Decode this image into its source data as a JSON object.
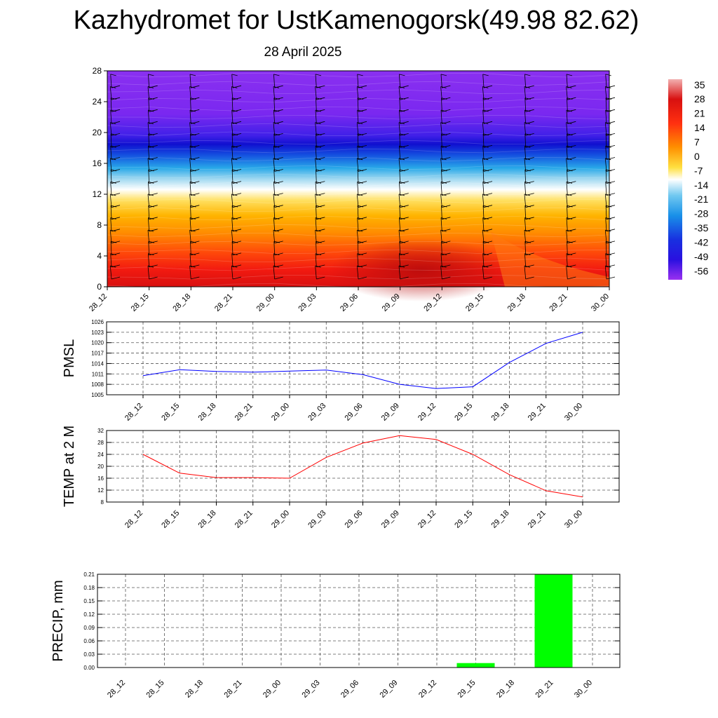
{
  "title": "Kazhydromet for UstKamenogorsk(49.98 82.62)",
  "subtitle": "28 April 2025",
  "time_labels": [
    "28_12",
    "28_15",
    "28_18",
    "28_21",
    "29_00",
    "29_03",
    "29_06",
    "29_09",
    "29_12",
    "29_15",
    "29_18",
    "29_21",
    "30_00"
  ],
  "colors": {
    "pmsl_line": "#0000ff",
    "temp_line": "#ff0000",
    "precip_bar": "#00ff00",
    "grid": "#555555"
  },
  "chart_data": [
    {
      "type": "heatmap",
      "description_of_field": "temperature cross-section with wind barbs",
      "x": [
        "28_12",
        "28_15",
        "28_18",
        "28_21",
        "29_00",
        "29_03",
        "29_06",
        "29_09",
        "29_12",
        "29_15",
        "29_18",
        "29_21",
        "30_00"
      ],
      "y_ticks": [
        0,
        4,
        8,
        12,
        16,
        20,
        24,
        28
      ],
      "ylim": [
        0,
        28
      ],
      "colorbar_labels": [
        "35",
        "28",
        "21",
        "14",
        "7",
        "0",
        "-7",
        "-14",
        "-21",
        "-28",
        "-35",
        "-42",
        "-49",
        "-56"
      ],
      "colorbar_range": [
        -60,
        38
      ],
      "wind_barbs": true
    },
    {
      "type": "line",
      "ylabel": "PMSL",
      "x": [
        "28_12",
        "28_15",
        "28_18",
        "28_21",
        "29_00",
        "29_03",
        "29_06",
        "29_09",
        "29_12",
        "29_15",
        "29_18",
        "29_21",
        "30_00"
      ],
      "series": [
        {
          "values": [
            1010.5,
            1012.2,
            1011.7,
            1011.5,
            1011.8,
            1012.1,
            1010.8,
            1008.0,
            1006.8,
            1007.3,
            1014.3,
            1019.8,
            1023.0
          ]
        }
      ],
      "y_ticks": [
        1005,
        1008,
        1011,
        1014,
        1017,
        1020,
        1023,
        1026
      ],
      "ylim": [
        1005,
        1026
      ],
      "grid": true
    },
    {
      "type": "line",
      "ylabel": "TEMP at 2 M",
      "x": [
        "28_12",
        "28_15",
        "28_18",
        "28_21",
        "29_00",
        "29_03",
        "29_06",
        "29_09",
        "29_12",
        "29_15",
        "29_18",
        "29_21",
        "30_00"
      ],
      "series": [
        {
          "values": [
            24.0,
            17.7,
            16.2,
            16.2,
            16.0,
            23.0,
            27.8,
            30.3,
            29.0,
            24.0,
            17.2,
            11.8,
            9.7
          ]
        }
      ],
      "y_ticks": [
        8,
        12,
        16,
        20,
        24,
        28,
        32
      ],
      "ylim": [
        8,
        32
      ],
      "grid": true
    },
    {
      "type": "bar",
      "ylabel": "PRECIP, mm",
      "categories": [
        "28_12",
        "28_15",
        "28_18",
        "28_21",
        "29_00",
        "29_03",
        "29_06",
        "29_09",
        "29_12",
        "29_15",
        "29_18",
        "29_21",
        "30_00"
      ],
      "values": [
        0,
        0,
        0,
        0,
        0,
        0,
        0,
        0,
        0,
        0.01,
        0,
        0.21,
        0
      ],
      "y_ticks": [
        "0.00",
        "0.03",
        "0.06",
        "0.09",
        "0.12",
        "0.15",
        "0.18",
        "0.21"
      ],
      "ylim": [
        0,
        0.21
      ],
      "grid": true
    }
  ]
}
